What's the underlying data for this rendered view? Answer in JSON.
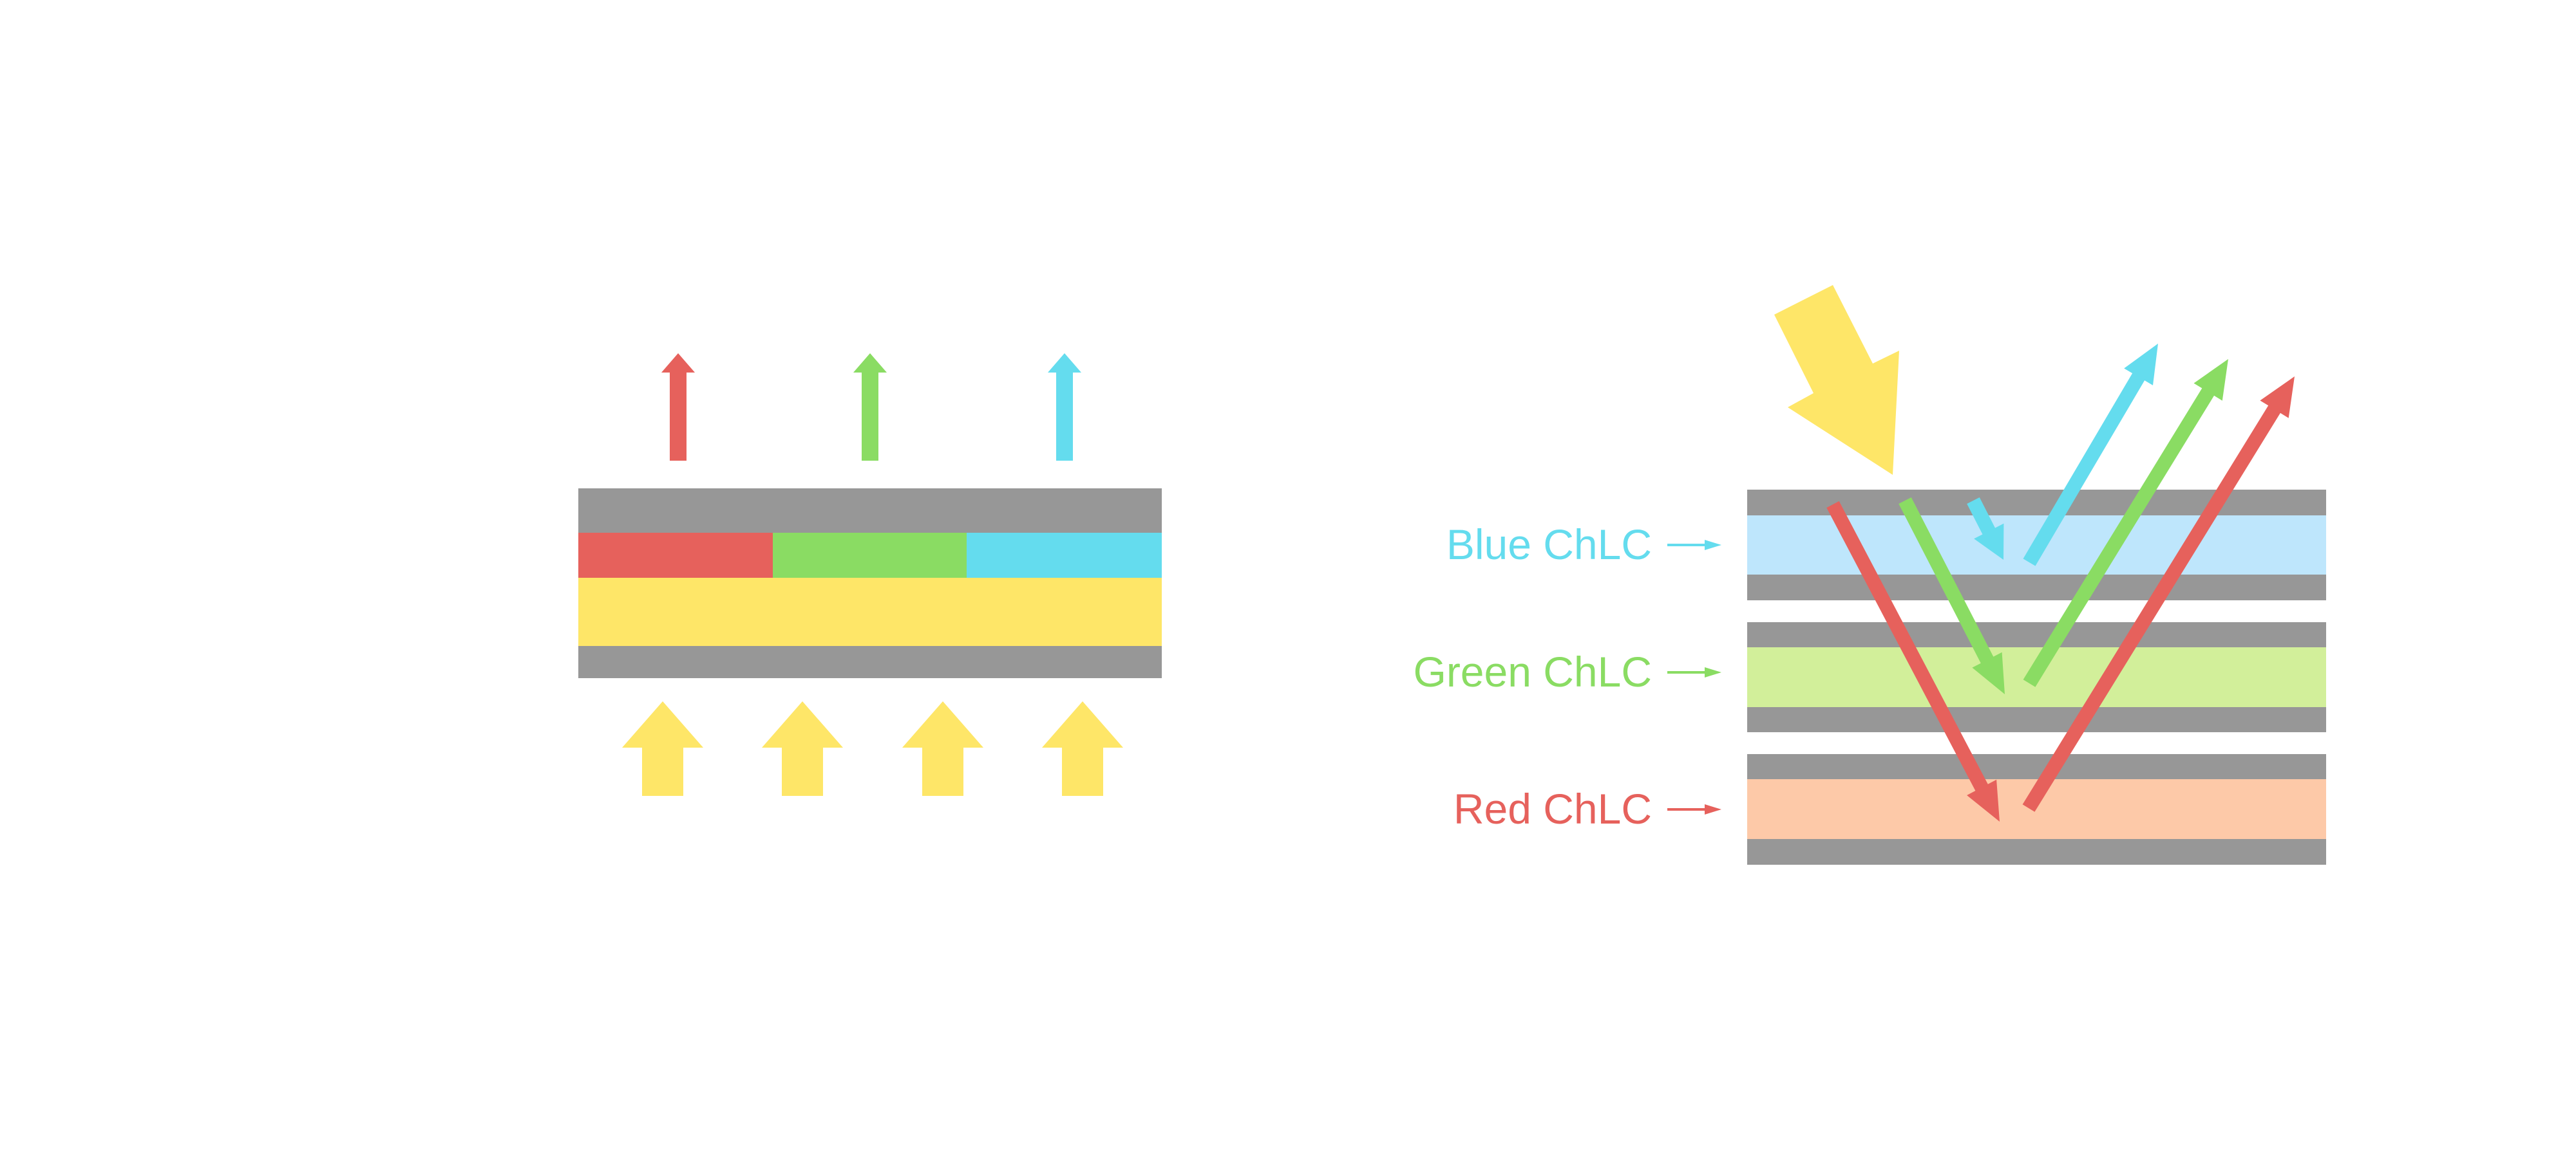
{
  "colors": {
    "red": "#E6615C",
    "green": "#8ADC63",
    "blue": "#64DCEE",
    "yellow": "#FEE668",
    "gray": "#979797",
    "blue_layer": "#BEE6FC",
    "green_layer": "#D2EF9A",
    "red_layer": "#FDC9A8"
  },
  "labels": {
    "blue": "Blue ChLC",
    "green": "Green ChLC",
    "red": "Red ChLC"
  }
}
